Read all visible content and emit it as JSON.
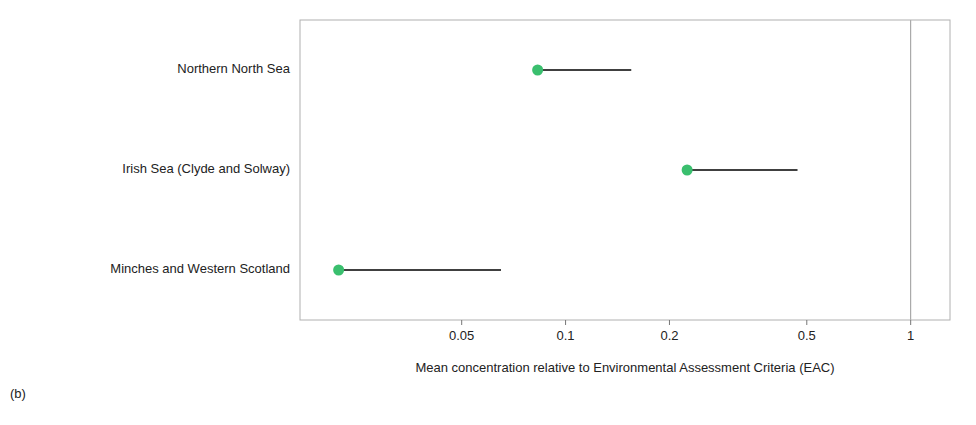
{
  "chart_data": {
    "type": "range",
    "orientation": "horizontal",
    "log": "x",
    "grid": false,
    "x_label": "Mean concentration relative to Environmental Assessment Criteria (EAC)",
    "annotations": [
      "(b)"
    ],
    "categories": [
      "Northern North Sea",
      "Irish Sea (Clyde and Solway)",
      "Minches and Western Scotland"
    ],
    "series": [
      {
        "values": [
          0.083,
          0.225,
          0.022
        ],
        "color": "#3abf6e",
        "marker": "circle"
      },
      {
        "values": [
          0.155,
          0.47,
          0.065
        ],
        "color": "#000000",
        "line_style": "solid"
      }
    ],
    "reference_line": {
      "value": 1.0,
      "color": "#999999"
    },
    "xlim": [
      0.017,
      1.3
    ],
    "xticks": [
      0.05,
      0.1,
      0.2,
      0.5,
      1
    ]
  }
}
